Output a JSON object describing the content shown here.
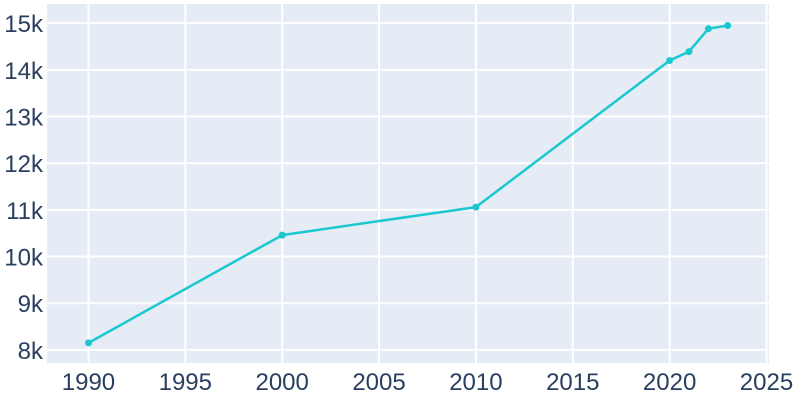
{
  "chart_data": {
    "type": "line",
    "title": "",
    "xlabel": "",
    "ylabel": "",
    "series": [
      {
        "name": "population",
        "x": [
          1990,
          2000,
          2010,
          2020,
          2021,
          2022,
          2023
        ],
        "y": [
          8150,
          10460,
          11060,
          14200,
          14390,
          14880,
          14950
        ]
      }
    ],
    "x_ticks": {
      "values": [
        1990,
        1995,
        2000,
        2005,
        2010,
        2015,
        2020,
        2025
      ],
      "labels": [
        "1990",
        "1995",
        "2000",
        "2005",
        "2010",
        "2015",
        "2020",
        "2025"
      ]
    },
    "y_ticks": {
      "values": [
        8000,
        9000,
        10000,
        11000,
        12000,
        13000,
        14000,
        15000
      ],
      "labels": [
        "8k",
        "9k",
        "10k",
        "11k",
        "12k",
        "13k",
        "14k",
        "15k"
      ]
    },
    "xlim": [
      1987.86,
      2025.13
    ],
    "ylim": [
      7720,
      15410
    ],
    "grid": true,
    "legend_position": "none",
    "colors": {
      "line": "#1bc8cf",
      "marker": "#1bc8cf",
      "plot_background": "#e5ecf6",
      "gridline": "#ffffff",
      "tick_label": "#2a3f5f",
      "paper_background": "#ffffff"
    }
  }
}
